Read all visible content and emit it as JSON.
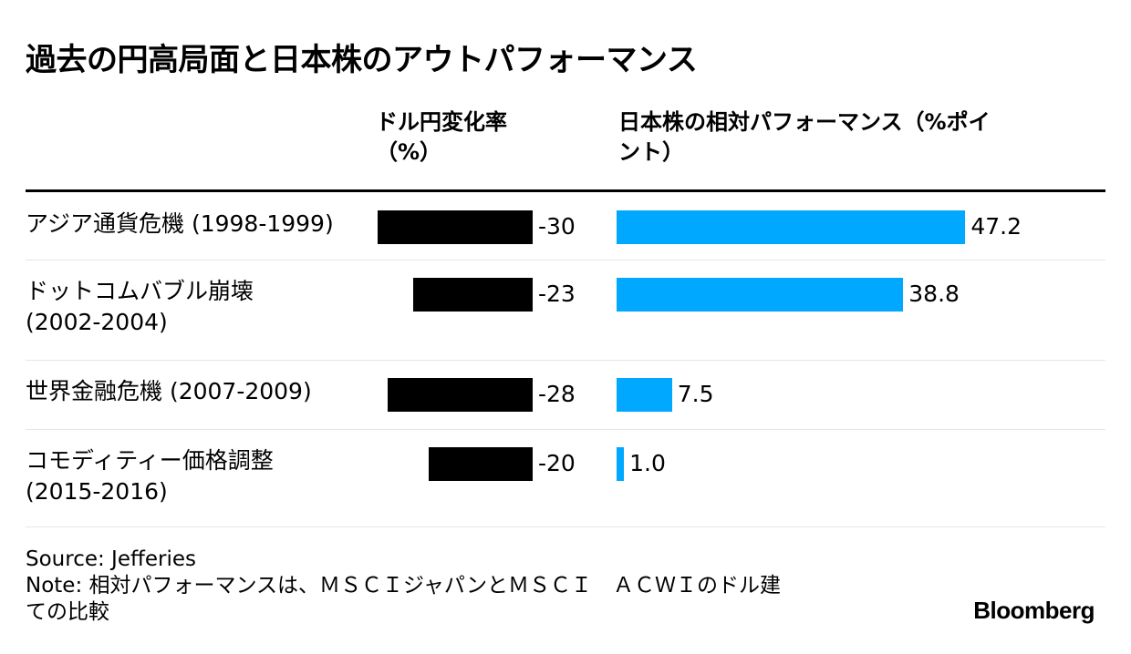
{
  "chart_data": {
    "type": "bar",
    "title": "過去の円高局面と日本株のアウトパフォーマンス",
    "categories": [
      [
        "アジア通貨危機 (1998-1999)"
      ],
      [
        "ドットコムバブル崩壊",
        "(2002-2004)"
      ],
      [
        "世界金融危機 (2007-2009)"
      ],
      [
        "コモディティー価格調整",
        "(2015-2016)"
      ]
    ],
    "series": [
      {
        "name": "ドル円変化率（%）",
        "header": [
          "ドル円変化率",
          "（%）"
        ],
        "values": [
          -30,
          -23,
          -28,
          -20
        ],
        "labels": [
          "-30",
          "-23",
          "-28",
          "-20"
        ],
        "color": "#000000"
      },
      {
        "name": "日本株の相対パフォーマンス（%ポイント）",
        "header": [
          "日本株の相対パフォーマンス（%ポイ",
          "ント）"
        ],
        "values": [
          47.2,
          38.8,
          7.5,
          1.0
        ],
        "labels": [
          "47.2",
          "38.8",
          "7.5",
          "1.0"
        ],
        "color": "#00a8ff"
      }
    ],
    "source": "Source: Jefferies",
    "note": [
      "Note: 相対パフォーマンスは、ＭＳＣＩジャパンとＭＳＣＩ　ＡＣＷＩのドル建",
      "ての比較"
    ],
    "brand": "Bloomberg"
  }
}
